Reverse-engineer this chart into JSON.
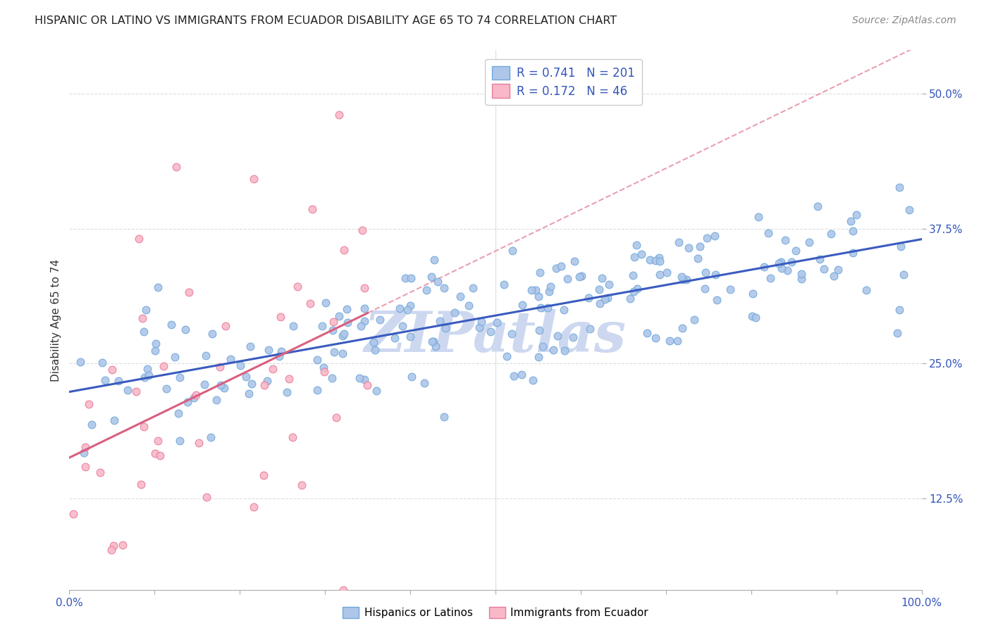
{
  "title": "HISPANIC OR LATINO VS IMMIGRANTS FROM ECUADOR DISABILITY AGE 65 TO 74 CORRELATION CHART",
  "source_text": "Source: ZipAtlas.com",
  "ylabel": "Disability Age 65 to 74",
  "ytick_labels": [
    "12.5%",
    "25.0%",
    "37.5%",
    "50.0%"
  ],
  "ytick_values": [
    0.125,
    0.25,
    0.375,
    0.5
  ],
  "xmin": 0.0,
  "xmax": 1.0,
  "ymin": 0.04,
  "ymax": 0.54,
  "series1_color": "#aec6e8",
  "series1_edge": "#6fa8dc",
  "series2_color": "#f9b8c8",
  "series2_edge": "#e87a9a",
  "trendline1_color": "#3a5bbf",
  "trendline2_color": "#d95f7f",
  "trendline2_dash_color": "#e8a0b0",
  "R1": 0.741,
  "N1": 201,
  "R2": 0.172,
  "N2": 46,
  "legend_label1": "Hispanics or Latinos",
  "legend_label2": "Immigrants from Ecuador",
  "watermark": "ZIPatlas",
  "watermark_color": "#cdd8f0",
  "background_color": "#ffffff",
  "grid_color": "#dddddd",
  "title_fontsize": 11.5,
  "source_fontsize": 10,
  "tick_fontsize": 11,
  "ylabel_fontsize": 11
}
